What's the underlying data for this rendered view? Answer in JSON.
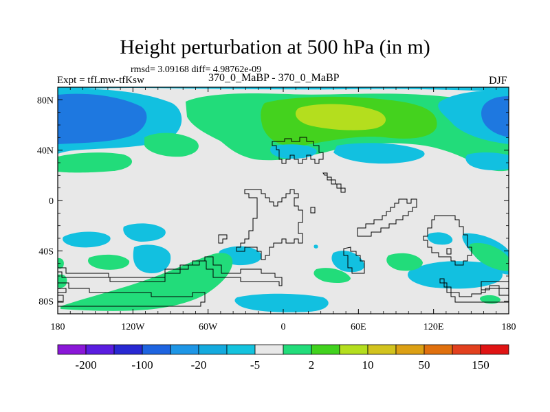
{
  "title": "Height perturbation at 500 hPa (in m)",
  "stats": "rmsd= 3.09168 diff= 4.98762e-09",
  "experiment": "Expt = tfLmw-tfKsw",
  "case": "370_0_MaBP - 370_0_MaBP",
  "season": "DJF",
  "lat_ticks": [
    {
      "value": 80,
      "label": "80N"
    },
    {
      "value": 40,
      "label": "40N"
    },
    {
      "value": 0,
      "label": "0"
    },
    {
      "value": -40,
      "label": "40S"
    },
    {
      "value": -80,
      "label": "80S"
    }
  ],
  "lon_ticks": [
    {
      "value": -180,
      "label": "180"
    },
    {
      "value": -120,
      "label": "120W"
    },
    {
      "value": -60,
      "label": "60W"
    },
    {
      "value": 0,
      "label": "0"
    },
    {
      "value": 60,
      "label": "60E"
    },
    {
      "value": 120,
      "label": "120E"
    },
    {
      "value": 180,
      "label": "180"
    }
  ],
  "colorbar": {
    "colors": [
      "#8a17d8",
      "#5a1de0",
      "#2828d2",
      "#1e64e0",
      "#1e96e6",
      "#14aade",
      "#14c3de",
      "#e8e8e8",
      "#22dc7a",
      "#41d21e",
      "#b4de1e",
      "#d2c31e",
      "#dca014",
      "#e0700e",
      "#e2401e",
      "#e01414"
    ],
    "labels": [
      {
        "index": 1,
        "text": "-200"
      },
      {
        "index": 3,
        "text": "-100"
      },
      {
        "index": 5,
        "text": "-20"
      },
      {
        "index": 7,
        "text": "-5"
      },
      {
        "index": 9,
        "text": "2"
      },
      {
        "index": 11,
        "text": "10"
      },
      {
        "index": 13,
        "text": "50"
      },
      {
        "index": 15,
        "text": "150"
      }
    ]
  },
  "field_colors": {
    "background": "#e8e8e8",
    "neg_strong": "#1e78e0",
    "neg": "#12c0e0",
    "pos": "#22dc7a",
    "pos_mid": "#44d21e",
    "pos_strong": "#b4de1e"
  }
}
